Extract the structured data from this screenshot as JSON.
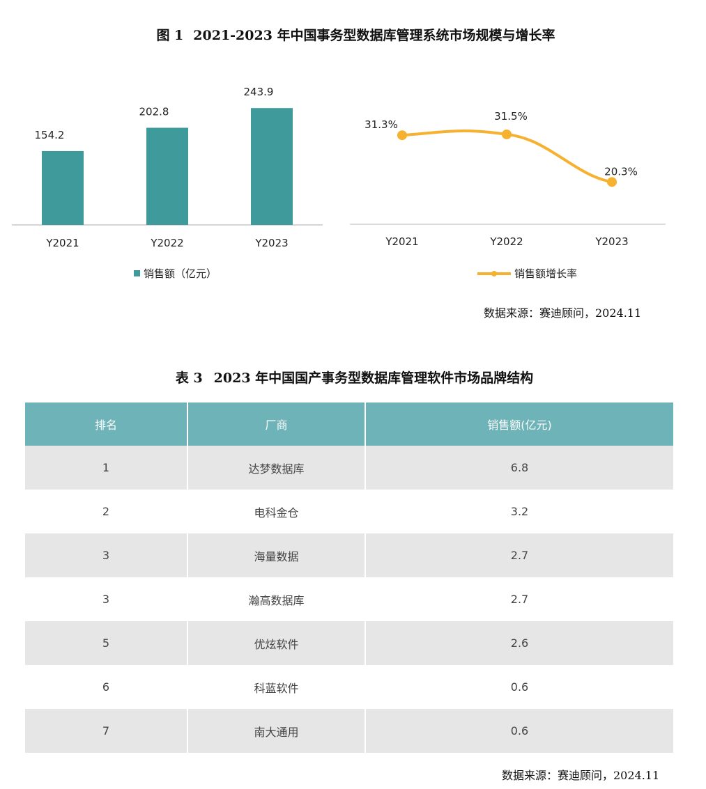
{
  "figure": {
    "label": "图 1",
    "title": "2021-2023 年中国事务型数据库管理系统市场规模与增长率",
    "source": "数据来源：赛迪顾问，2024.11"
  },
  "chart_data": [
    {
      "type": "bar",
      "categories": [
        "Y2021",
        "Y2022",
        "Y2023"
      ],
      "series": [
        {
          "name": "销售额（亿元）",
          "values": [
            154.2,
            202.8,
            243.9
          ],
          "color": "#3f9a9b"
        }
      ],
      "data_labels": [
        "154.2",
        "202.8",
        "243.9"
      ],
      "legend": "bottom",
      "grid": false
    },
    {
      "type": "line",
      "categories": [
        "Y2021",
        "Y2022",
        "Y2023"
      ],
      "series": [
        {
          "name": "销售额增长率",
          "values": [
            31.3,
            31.5,
            20.3
          ],
          "unit": "%",
          "color": "#f5b12f"
        }
      ],
      "data_labels": [
        "31.3%",
        "31.5%",
        "20.3%"
      ],
      "smooth": true,
      "legend": "bottom",
      "grid": false
    }
  ],
  "table": {
    "label": "表 3",
    "title": "2023 年中国国产事务型数据库管理软件市场品牌结构",
    "headers": [
      "排名",
      "厂商",
      "销售额(亿元)"
    ],
    "rows": [
      [
        "1",
        "达梦数据库",
        "6.8"
      ],
      [
        "2",
        "电科金仓",
        "3.2"
      ],
      [
        "3",
        "海量数据",
        "2.7"
      ],
      [
        "3",
        "瀚高数据库",
        "2.7"
      ],
      [
        "5",
        "优炫软件",
        "2.6"
      ],
      [
        "6",
        "科蓝软件",
        "0.6"
      ],
      [
        "7",
        "南大通用",
        "0.6"
      ]
    ],
    "header_color": "#6db3b8",
    "source": "数据来源：赛迪顾问，2024.11"
  }
}
